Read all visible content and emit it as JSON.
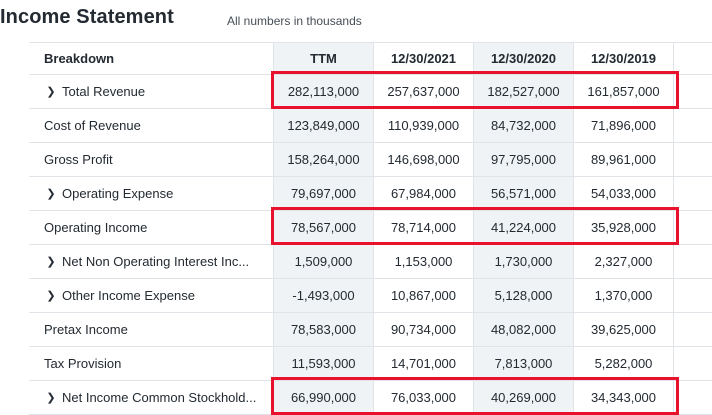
{
  "header": {
    "title": "Income Statement",
    "subtitle": "All numbers in thousands"
  },
  "table": {
    "columns": [
      "Breakdown",
      "TTM",
      "12/30/2021",
      "12/30/2020",
      "12/30/2019"
    ],
    "rows": [
      {
        "label": "Total Revenue",
        "expandable": true,
        "values": [
          "282,113,000",
          "257,637,000",
          "182,527,000",
          "161,857,000"
        ],
        "highlighted": true
      },
      {
        "label": "Cost of Revenue",
        "expandable": false,
        "values": [
          "123,849,000",
          "110,939,000",
          "84,732,000",
          "71,896,000"
        ],
        "highlighted": false
      },
      {
        "label": "Gross Profit",
        "expandable": false,
        "values": [
          "158,264,000",
          "146,698,000",
          "97,795,000",
          "89,961,000"
        ],
        "highlighted": false
      },
      {
        "label": "Operating Expense",
        "expandable": true,
        "values": [
          "79,697,000",
          "67,984,000",
          "56,571,000",
          "54,033,000"
        ],
        "highlighted": false
      },
      {
        "label": "Operating Income",
        "expandable": false,
        "values": [
          "78,567,000",
          "78,714,000",
          "41,224,000",
          "35,928,000"
        ],
        "highlighted": true
      },
      {
        "label": "Net Non Operating Interest Inc...",
        "expandable": true,
        "values": [
          "1,509,000",
          "1,153,000",
          "1,730,000",
          "2,327,000"
        ],
        "highlighted": false
      },
      {
        "label": "Other Income Expense",
        "expandable": true,
        "values": [
          "-1,493,000",
          "10,867,000",
          "5,128,000",
          "1,370,000"
        ],
        "highlighted": false
      },
      {
        "label": "Pretax Income",
        "expandable": false,
        "values": [
          "78,583,000",
          "90,734,000",
          "48,082,000",
          "39,625,000"
        ],
        "highlighted": false
      },
      {
        "label": "Tax Provision",
        "expandable": false,
        "values": [
          "11,593,000",
          "14,701,000",
          "7,813,000",
          "5,282,000"
        ],
        "highlighted": false
      },
      {
        "label": "Net Income Common Stockhold...",
        "expandable": true,
        "values": [
          "66,990,000",
          "76,033,000",
          "40,269,000",
          "34,343,000"
        ],
        "highlighted": true
      }
    ]
  },
  "colors": {
    "highlight": "#e8122d",
    "column_shade": "#f0f3f5",
    "border": "#e0e4e9",
    "text": "#232a31"
  },
  "icons": {
    "expand": "chevron-right-icon"
  }
}
